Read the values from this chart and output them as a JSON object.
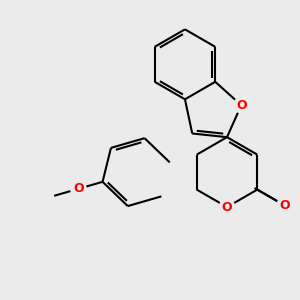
{
  "bg_color": "#ebebeb",
  "bond_color": "#000000",
  "oxygen_color": "#ff0000",
  "lw": 1.5,
  "figsize": [
    3.0,
    3.0
  ],
  "dpi": 100,
  "xlim": [
    -4.5,
    3.5
  ],
  "ylim": [
    -3.5,
    5.0
  ]
}
